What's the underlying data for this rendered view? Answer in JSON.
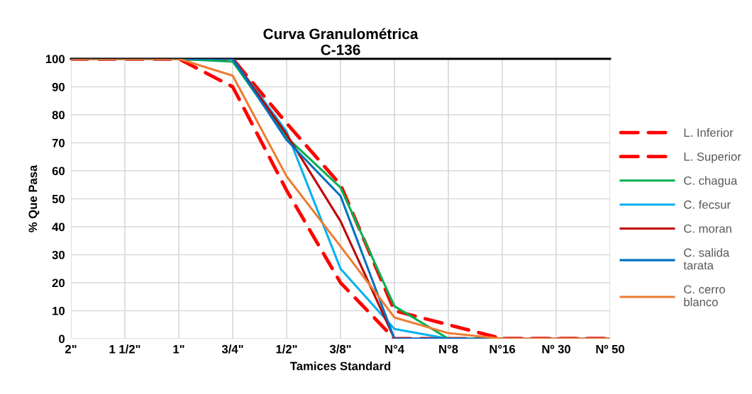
{
  "chart_data": {
    "type": "line",
    "title": "Curva Granulométrica\nC-136",
    "xlabel": "Tamices Standard",
    "ylabel": "% Que Pasa",
    "categories": [
      "2\"",
      "1 1/2\"",
      "1\"",
      "3/4\"",
      "1/2\"",
      "3/8\"",
      "N°4",
      "N°8",
      "N°16",
      "Nº 30",
      "Nº 50"
    ],
    "series": [
      {
        "name": "L. Inferior",
        "color": "#ff0000",
        "line_style": "dashed",
        "values": [
          100,
          100,
          100,
          90,
          53,
          20,
          0,
          0,
          0,
          0,
          0
        ]
      },
      {
        "name": "L. Superior",
        "color": "#ff0000",
        "line_style": "dashed",
        "values": [
          100,
          100,
          100,
          100,
          77,
          55,
          10,
          5,
          0,
          0,
          0
        ]
      },
      {
        "name": "C. chagua",
        "color": "#00b050",
        "values": [
          100,
          100,
          100,
          99,
          72,
          54,
          11.6,
          0,
          0,
          null,
          null
        ]
      },
      {
        "name": "C. fecsur",
        "color": "#00b0f0",
        "values": [
          null,
          null,
          null,
          100,
          74,
          25,
          3.5,
          0,
          null,
          null,
          null
        ]
      },
      {
        "name": "C. moran",
        "color": "#c00000",
        "values": [
          null,
          null,
          null,
          100,
          73,
          42,
          0,
          0,
          null,
          null,
          null
        ]
      },
      {
        "name": "C. salida\ntarata",
        "color": "#0070c0",
        "values": [
          100,
          100,
          100,
          100,
          71,
          51,
          0,
          0,
          0,
          0,
          0
        ]
      },
      {
        "name": "C. cerro\nblanco",
        "color": "#ed7d31",
        "values": [
          100,
          100,
          100,
          94,
          58,
          33,
          7.6,
          2,
          0,
          0,
          0
        ]
      }
    ],
    "ylim": [
      0,
      100
    ],
    "yticks": [
      0,
      10,
      20,
      30,
      40,
      50,
      60,
      70,
      80,
      90,
      100
    ],
    "grid": true,
    "legend": "right",
    "line_style": "solid",
    "marker": "none"
  }
}
